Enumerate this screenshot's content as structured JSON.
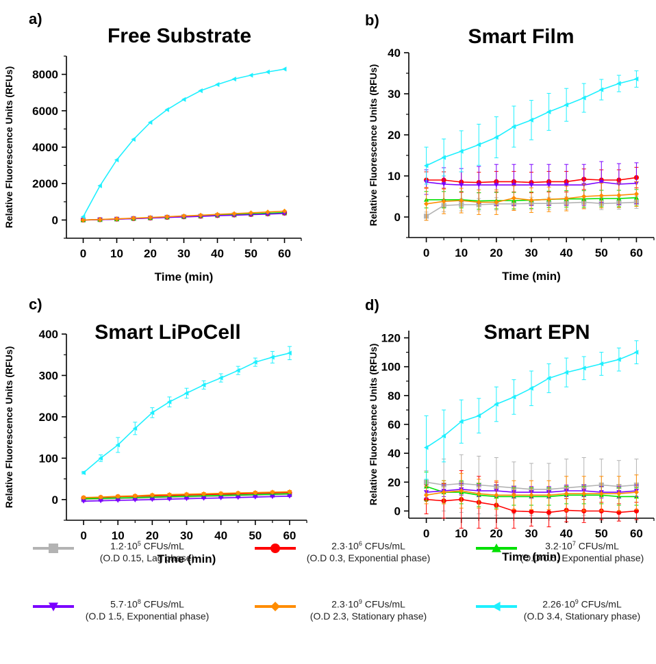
{
  "legend": [
    {
      "id": "s1",
      "color": "#b3b3b3",
      "marker": "square",
      "line1": "1.2·10",
      "sup": "5",
      "unit": " CFUs/mL",
      "line2": "(O.D 0.15, Lag phase)"
    },
    {
      "id": "s2",
      "color": "#ff0000",
      "marker": "circle",
      "line1": "2.3·10",
      "sup": "6",
      "unit": " CFUs/mL",
      "line2": "(O.D 0.3, Exponential phase)"
    },
    {
      "id": "s3",
      "color": "#00e000",
      "marker": "triangle-up",
      "line1": "3.2·10",
      "sup": "7",
      "unit": " CFUs/mL",
      "line2": "(O.D 0.5, Exponential phase)"
    },
    {
      "id": "s4",
      "color": "#7a00ff",
      "marker": "triangle-down",
      "line1": "5.7·10",
      "sup": "8",
      "unit": " CFUs/mL",
      "line2": "(O.D 1.5, Exponential phase)"
    },
    {
      "id": "s5",
      "color": "#ff8c00",
      "marker": "diamond",
      "line1": "2.3·10",
      "sup": "9",
      "unit": " CFUs/mL",
      "line2": "(O.D 2.3, Stationary phase)"
    },
    {
      "id": "s6",
      "color": "#1ef0ff",
      "marker": "triangle-left",
      "line1": "2.26·10",
      "sup": "9",
      "unit": " CFUs/mL",
      "line2": "(O.D 3.4, Stationary phase)"
    }
  ],
  "chart_data": [
    {
      "panel": "a)",
      "type": "line",
      "title": "Free Substrate",
      "xlabel": "Time (min)",
      "ylabel": "Relative Fluorescence Units (RFUs)",
      "xlim": [
        -5,
        65
      ],
      "ylim": [
        -1000,
        9000
      ],
      "xticks": [
        0,
        10,
        20,
        30,
        40,
        50,
        60
      ],
      "yticks": [
        0,
        2000,
        4000,
        6000,
        8000
      ],
      "x": [
        0,
        5,
        10,
        15,
        20,
        25,
        30,
        35,
        40,
        45,
        50,
        55,
        60
      ],
      "series": [
        {
          "ref": "s1",
          "values": [
            0,
            20,
            50,
            80,
            110,
            150,
            180,
            210,
            250,
            280,
            310,
            340,
            380
          ],
          "err": [
            0,
            0,
            0,
            0,
            0,
            0,
            0,
            0,
            0,
            0,
            0,
            0,
            0
          ]
        },
        {
          "ref": "s2",
          "values": [
            0,
            20,
            50,
            80,
            110,
            150,
            180,
            210,
            250,
            280,
            310,
            340,
            380
          ],
          "err": [
            0,
            0,
            0,
            0,
            0,
            0,
            0,
            0,
            0,
            0,
            0,
            0,
            0
          ]
        },
        {
          "ref": "s3",
          "values": [
            0,
            25,
            55,
            85,
            120,
            160,
            190,
            230,
            270,
            300,
            340,
            370,
            410
          ],
          "err": [
            0,
            0,
            0,
            0,
            0,
            0,
            0,
            0,
            0,
            0,
            0,
            0,
            0
          ]
        },
        {
          "ref": "s4",
          "values": [
            0,
            20,
            45,
            75,
            105,
            140,
            170,
            200,
            235,
            265,
            295,
            325,
            360
          ],
          "err": [
            0,
            0,
            0,
            0,
            0,
            0,
            0,
            0,
            0,
            0,
            0,
            0,
            0
          ]
        },
        {
          "ref": "s5",
          "values": [
            0,
            30,
            65,
            100,
            140,
            180,
            225,
            265,
            310,
            350,
            395,
            440,
            490
          ],
          "err": [
            0,
            0,
            0,
            0,
            0,
            0,
            0,
            0,
            0,
            0,
            0,
            0,
            0
          ]
        },
        {
          "ref": "s6",
          "values": [
            180,
            1880,
            3300,
            4430,
            5360,
            6060,
            6620,
            7100,
            7440,
            7740,
            7950,
            8130,
            8290
          ],
          "err": [
            0,
            0,
            0,
            0,
            0,
            0,
            0,
            0,
            0,
            0,
            0,
            0,
            0
          ]
        }
      ]
    },
    {
      "panel": "b)",
      "type": "line",
      "title": "Smart Film",
      "xlabel": "Time (min)",
      "ylabel": "Relative Fluorescence Units (RFUs)",
      "xlim": [
        -5,
        65
      ],
      "ylim": [
        -5,
        40
      ],
      "xticks": [
        0,
        10,
        20,
        30,
        40,
        50,
        60
      ],
      "yticks": [
        0,
        10,
        20,
        30,
        40
      ],
      "x": [
        0,
        5,
        10,
        15,
        20,
        25,
        30,
        35,
        40,
        45,
        50,
        55,
        60
      ],
      "series": [
        {
          "ref": "s1",
          "values": [
            0.2,
            2.8,
            3.0,
            3.0,
            3.2,
            3.2,
            3.3,
            3.3,
            3.4,
            3.6,
            3.3,
            3.4,
            3.6
          ],
          "err": [
            1,
            1.5,
            1.5,
            1.5,
            1.5,
            1.5,
            1.5,
            1.5,
            1.5,
            1.5,
            1.5,
            1.5,
            1.5
          ]
        },
        {
          "ref": "s2",
          "values": [
            9.0,
            9.0,
            8.5,
            8.4,
            8.6,
            8.6,
            8.4,
            8.6,
            8.6,
            9.2,
            9.0,
            9.0,
            9.6
          ],
          "err": [
            2,
            2,
            2.5,
            2.5,
            2.5,
            2.5,
            2.5,
            2.5,
            2.5,
            2.5,
            2.5,
            2.5,
            2.5
          ]
        },
        {
          "ref": "s3",
          "values": [
            4.2,
            4.2,
            4.2,
            3.9,
            4.0,
            4.0,
            4.1,
            4.3,
            4.4,
            4.4,
            4.5,
            4.5,
            4.7
          ],
          "err": [
            2,
            2,
            2,
            2,
            2,
            2,
            2,
            2,
            2,
            2,
            2,
            2,
            2
          ]
        },
        {
          "ref": "s4",
          "values": [
            8.5,
            8.0,
            7.8,
            7.8,
            7.8,
            7.8,
            7.8,
            7.8,
            7.8,
            7.8,
            8.5,
            8.0,
            8.2
          ],
          "err": [
            3,
            4,
            4,
            4.5,
            5,
            5,
            5,
            5,
            5,
            5,
            5,
            5,
            5
          ]
        },
        {
          "ref": "s5",
          "values": [
            3.2,
            3.8,
            4.0,
            3.6,
            3.6,
            4.6,
            4.1,
            4.3,
            4.5,
            5.0,
            5.2,
            5.3,
            5.6
          ],
          "err": [
            4,
            3,
            3,
            3,
            3,
            3,
            3,
            3,
            3,
            3,
            3,
            3,
            3
          ]
        },
        {
          "ref": "s6",
          "values": [
            12.5,
            14.5,
            16.0,
            17.6,
            19.4,
            22.0,
            23.6,
            25.6,
            27.3,
            29.0,
            31.0,
            32.5,
            33.6
          ],
          "err": [
            4.5,
            4.5,
            5,
            5,
            5,
            5,
            4.8,
            4.5,
            4,
            3.5,
            2.5,
            2,
            2
          ]
        }
      ]
    },
    {
      "panel": "c)",
      "type": "line",
      "title": "Smart LiPoCell",
      "xlabel": "Time (min)",
      "ylabel": "Relative Fluorescence Units (RFUs)",
      "xlim": [
        -5,
        65
      ],
      "ylim": [
        -50,
        400
      ],
      "xticks": [
        0,
        10,
        20,
        30,
        40,
        50,
        60
      ],
      "yticks": [
        0,
        100,
        200,
        300,
        400
      ],
      "x": [
        0,
        5,
        10,
        15,
        20,
        25,
        30,
        35,
        40,
        45,
        50,
        55,
        60
      ],
      "series": [
        {
          "ref": "s1",
          "values": [
            0,
            1,
            2,
            3,
            4,
            5,
            6,
            7,
            8,
            9,
            10,
            11,
            12
          ],
          "err": [
            0,
            0,
            0,
            0,
            0,
            0,
            0,
            0,
            0,
            0,
            0,
            0,
            0
          ]
        },
        {
          "ref": "s2",
          "values": [
            4,
            5,
            7,
            8,
            9,
            10,
            11,
            12,
            13,
            14,
            15,
            16,
            17
          ],
          "err": [
            2,
            2,
            2,
            2,
            2,
            2,
            2,
            2,
            2,
            2,
            2,
            2,
            2
          ]
        },
        {
          "ref": "s3",
          "values": [
            2,
            3,
            4,
            5,
            6,
            7,
            8,
            9,
            10,
            11,
            12,
            13,
            14
          ],
          "err": [
            0,
            0,
            0,
            0,
            0,
            0,
            0,
            0,
            0,
            0,
            0,
            0,
            0
          ]
        },
        {
          "ref": "s4",
          "values": [
            -4,
            -3,
            -2,
            -1,
            0,
            1,
            2,
            3,
            4,
            5,
            6,
            7,
            8
          ],
          "err": [
            1,
            1,
            1,
            1,
            1,
            1,
            1,
            1,
            1,
            1,
            1,
            1,
            1
          ]
        },
        {
          "ref": "s5",
          "values": [
            5,
            6,
            8,
            9,
            11,
            12,
            13,
            14,
            15,
            16,
            17,
            18,
            19
          ],
          "err": [
            3,
            3,
            3,
            3,
            3,
            3,
            3,
            3,
            3,
            3,
            3,
            3,
            3
          ]
        },
        {
          "ref": "s6",
          "values": [
            65,
            100,
            132,
            172,
            210,
            236,
            257,
            277,
            294,
            312,
            332,
            344,
            354
          ],
          "err": [
            3,
            8,
            18,
            15,
            12,
            12,
            12,
            10,
            10,
            10,
            10,
            14,
            16
          ]
        }
      ]
    },
    {
      "panel": "d)",
      "type": "line",
      "title": "Smart EPN",
      "xlabel": "Time (min)",
      "ylabel": "Relative Fluorescence Units (RFUs)",
      "xlim": [
        -5,
        65
      ],
      "ylim": [
        -5,
        125
      ],
      "xticks": [
        0,
        10,
        20,
        30,
        40,
        50,
        60
      ],
      "yticks": [
        0,
        20,
        40,
        60,
        80,
        100,
        120
      ],
      "x": [
        0,
        5,
        10,
        15,
        20,
        25,
        30,
        35,
        40,
        45,
        50,
        55,
        60
      ],
      "series": [
        {
          "ref": "s1",
          "values": [
            20,
            18,
            19,
            18,
            17,
            16,
            15,
            15,
            16,
            17,
            18,
            17,
            18
          ],
          "err": [
            8,
            18,
            20,
            20,
            20,
            18,
            18,
            18,
            20,
            20,
            18,
            18,
            18
          ]
        },
        {
          "ref": "s2",
          "values": [
            8,
            7,
            8,
            6,
            4,
            0,
            -0.5,
            -1,
            0.5,
            0,
            0,
            -1,
            0
          ],
          "err": [
            10,
            12,
            20,
            18,
            16,
            12,
            10,
            10,
            8,
            8,
            6,
            6,
            6
          ]
        },
        {
          "ref": "s3",
          "values": [
            17,
            13,
            13,
            11,
            10,
            10,
            10,
            10,
            11,
            11,
            11,
            10,
            10
          ],
          "err": [
            10,
            8,
            8,
            8,
            8,
            6,
            6,
            6,
            6,
            6,
            6,
            6,
            6
          ]
        },
        {
          "ref": "s4",
          "values": [
            13,
            14,
            15,
            14,
            14,
            13,
            13,
            13,
            14,
            14,
            13,
            13,
            14
          ],
          "err": [
            4,
            4,
            4,
            4,
            4,
            4,
            4,
            4,
            4,
            4,
            4,
            4,
            4
          ]
        },
        {
          "ref": "s5",
          "values": [
            11,
            13,
            14,
            12,
            11,
            11,
            11,
            11,
            12,
            12,
            12,
            12,
            13
          ],
          "err": [
            6,
            8,
            12,
            10,
            10,
            10,
            10,
            10,
            12,
            12,
            12,
            12,
            12
          ]
        },
        {
          "ref": "s6",
          "values": [
            44,
            52,
            62,
            66,
            74,
            79,
            85,
            92,
            96,
            99,
            102,
            105,
            110
          ],
          "err": [
            22,
            18,
            15,
            12,
            12,
            12,
            12,
            10,
            10,
            8,
            8,
            8,
            8
          ]
        }
      ]
    }
  ]
}
